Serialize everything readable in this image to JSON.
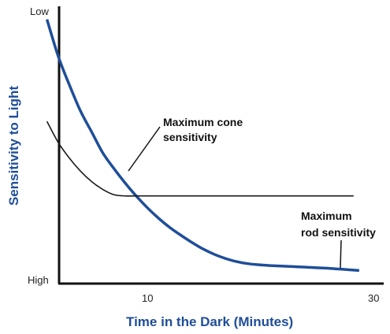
{
  "chart_data": {
    "type": "line",
    "xlabel": "Time in the Dark (Minutes)",
    "ylabel": "Sensitivity to Light",
    "x_ticks": [
      "10",
      "30"
    ],
    "y_ticks": {
      "top": "Low",
      "bottom": "High"
    },
    "xlim": [
      0,
      31
    ],
    "ylim": [
      0,
      100
    ],
    "series": [
      {
        "color": "#1f4e99",
        "x": [
          1,
          2,
          3,
          4,
          5,
          6,
          7,
          8,
          9,
          10,
          11,
          12,
          13,
          14,
          15,
          16,
          17,
          18,
          19,
          20,
          21,
          22,
          23,
          24,
          25,
          26,
          27,
          28,
          29
        ],
        "y": [
          98,
          84,
          73,
          63,
          55,
          47,
          41,
          35.5,
          30.5,
          26,
          22,
          18.5,
          15.5,
          12.7,
          10.2,
          8.2,
          6.6,
          5.4,
          4.6,
          4.2,
          3.9,
          3.7,
          3.5,
          3.3,
          3.1,
          2.9,
          2.6,
          2.3,
          2.0
        ]
      },
      {
        "color": "#1a1a1a",
        "x": [
          1,
          2,
          3,
          4,
          5,
          6,
          7,
          8,
          9,
          10,
          12,
          15,
          20,
          25,
          28.5
        ],
        "y": [
          59,
          51,
          45,
          40,
          36,
          33,
          31,
          30.5,
          30.5,
          30.5,
          30.5,
          30.5,
          30.5,
          30.5,
          30.5
        ]
      }
    ],
    "annotations": [
      {
        "lines": [
          "Maximum cone",
          "sensitivity"
        ]
      },
      {
        "lines": [
          "Maximum",
          "rod sensitivity"
        ]
      }
    ],
    "grid": false,
    "legend": "none"
  }
}
